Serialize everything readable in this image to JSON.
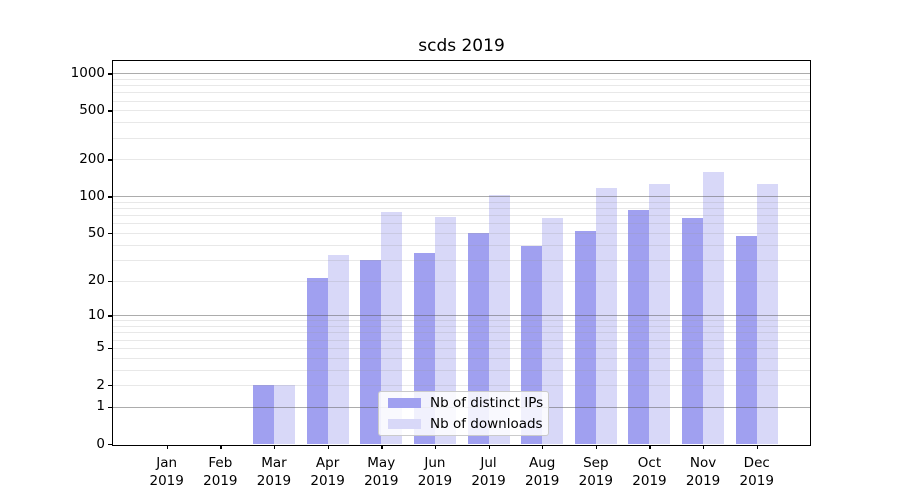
{
  "title": "scds 2019",
  "legend": {
    "items": [
      {
        "label": "Nb of distinct IPs",
        "color": "#a0a0f0"
      },
      {
        "label": "Nb of downloads",
        "color": "#d8d8f8"
      }
    ]
  },
  "chart_data": {
    "type": "bar",
    "title": "scds 2019",
    "months": [
      "Jan",
      "Feb",
      "Mar",
      "Apr",
      "May",
      "Jun",
      "Jul",
      "Aug",
      "Sep",
      "Oct",
      "Nov",
      "Dec"
    ],
    "year": "2019",
    "categories": [
      "Jan 2019",
      "Feb 2019",
      "Mar 2019",
      "Apr 2019",
      "May 2019",
      "Jun 2019",
      "Jul 2019",
      "Aug 2019",
      "Sep 2019",
      "Oct 2019",
      "Nov 2019",
      "Dec 2019"
    ],
    "series": [
      {
        "name": "Nb of distinct IPs",
        "color": "#a0a0f0",
        "values": [
          0,
          0,
          2,
          21,
          30,
          34,
          50,
          39,
          52,
          78,
          66,
          47
        ]
      },
      {
        "name": "Nb of downloads",
        "color": "#d8d8f8",
        "values": [
          0,
          0,
          2,
          33,
          75,
          68,
          102,
          67,
          117,
          126,
          157,
          127
        ]
      }
    ],
    "xlabel": "",
    "ylabel": "",
    "yscale": "log1p",
    "y_ticks": [
      0,
      1,
      2,
      5,
      10,
      20,
      50,
      100,
      200,
      500,
      1000
    ],
    "y_major_grid": [
      1,
      10,
      100,
      1000
    ],
    "y_minor_ticks": [
      3,
      4,
      6,
      7,
      8,
      9,
      30,
      40,
      60,
      70,
      80,
      90,
      300,
      400,
      600,
      700,
      800,
      900
    ],
    "ylim": [
      0,
      1265
    ],
    "grid": true,
    "legend_position": "lower center"
  }
}
